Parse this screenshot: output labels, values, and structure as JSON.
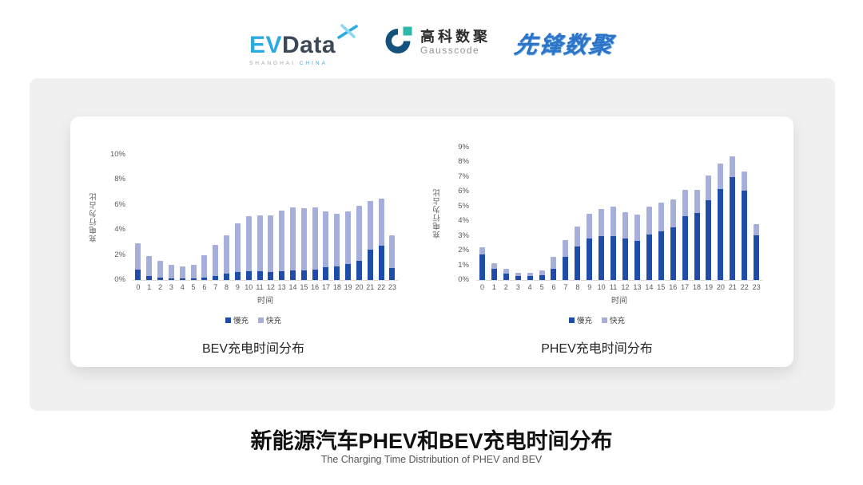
{
  "header": {
    "logos": {
      "evdata": {
        "ev": "EV",
        "data": "Data",
        "tagline_left": "SHANGHAI",
        "tagline_right": "CHINA"
      },
      "gausscode": {
        "cn": "高科数聚",
        "en": "Gausscode"
      },
      "pioneer": {
        "text": "先锋数聚"
      }
    }
  },
  "colors": {
    "slow_charge": "#1d4da8",
    "fast_charge": "#a6afd9",
    "panel_gray": "#f0f0f0",
    "axis_text": "#595959",
    "evdata_blue": "#29aae1",
    "gauss_navy": "#15517e",
    "gauss_teal": "#2cb9ac",
    "pioneer_blue": "#2b74c8"
  },
  "chart_data": [
    {
      "type": "bar",
      "stacked": true,
      "title": "BEV充电时间分布",
      "xlabel": "时间",
      "ylabel": "充电行为占比",
      "ylim": [
        0,
        10
      ],
      "ytick_step": 2,
      "ytick_suffix": "%",
      "grid": false,
      "legend_position": "bottom",
      "categories": [
        "0",
        "1",
        "2",
        "3",
        "4",
        "5",
        "6",
        "7",
        "8",
        "9",
        "10",
        "11",
        "12",
        "13",
        "14",
        "15",
        "16",
        "17",
        "18",
        "19",
        "20",
        "21",
        "22",
        "23"
      ],
      "series": [
        {
          "name": "慢充",
          "color": "#1d4da8",
          "values": [
            0.8,
            0.35,
            0.2,
            0.1,
            0.1,
            0.1,
            0.2,
            0.35,
            0.5,
            0.65,
            0.7,
            0.7,
            0.65,
            0.7,
            0.75,
            0.75,
            0.85,
            1.0,
            1.1,
            1.3,
            1.55,
            2.4,
            2.75,
            0.95
          ]
        },
        {
          "name": "快充",
          "color": "#a6afd9",
          "values": [
            2.1,
            1.55,
            1.35,
            1.1,
            1.0,
            1.1,
            1.8,
            2.45,
            3.1,
            3.9,
            4.4,
            4.45,
            4.5,
            4.85,
            5.05,
            5.0,
            4.95,
            4.45,
            4.2,
            4.2,
            4.35,
            3.9,
            3.75,
            2.6
          ]
        }
      ]
    },
    {
      "type": "bar",
      "stacked": true,
      "title": "PHEV充电时间分布",
      "xlabel": "时间",
      "ylabel": "充电行为占比",
      "ylim": [
        0,
        9
      ],
      "ytick_step": 1,
      "ytick_suffix": "%",
      "grid": false,
      "legend_position": "bottom",
      "categories": [
        "0",
        "1",
        "2",
        "3",
        "4",
        "5",
        "6",
        "7",
        "8",
        "9",
        "10",
        "11",
        "12",
        "13",
        "14",
        "15",
        "16",
        "17",
        "18",
        "19",
        "20",
        "21",
        "22",
        "23"
      ],
      "series": [
        {
          "name": "慢充",
          "color": "#1d4da8",
          "values": [
            1.75,
            0.75,
            0.45,
            0.25,
            0.25,
            0.3,
            0.75,
            1.6,
            2.3,
            2.8,
            3.0,
            3.0,
            2.8,
            2.65,
            3.1,
            3.3,
            3.6,
            4.35,
            4.55,
            5.4,
            6.2,
            7.0,
            6.1,
            3.05
          ]
        },
        {
          "name": "快充",
          "color": "#a6afd9",
          "values": [
            0.45,
            0.4,
            0.3,
            0.25,
            0.25,
            0.35,
            0.85,
            1.1,
            1.35,
            1.7,
            1.8,
            2.0,
            1.8,
            1.8,
            1.9,
            1.95,
            1.9,
            1.8,
            1.6,
            1.7,
            1.7,
            1.4,
            1.25,
            0.75
          ]
        }
      ]
    }
  ],
  "footer": {
    "title": "新能源汽车PHEV和BEV充电时间分布",
    "subtitle": "The Charging Time Distribution of PHEV and BEV"
  }
}
